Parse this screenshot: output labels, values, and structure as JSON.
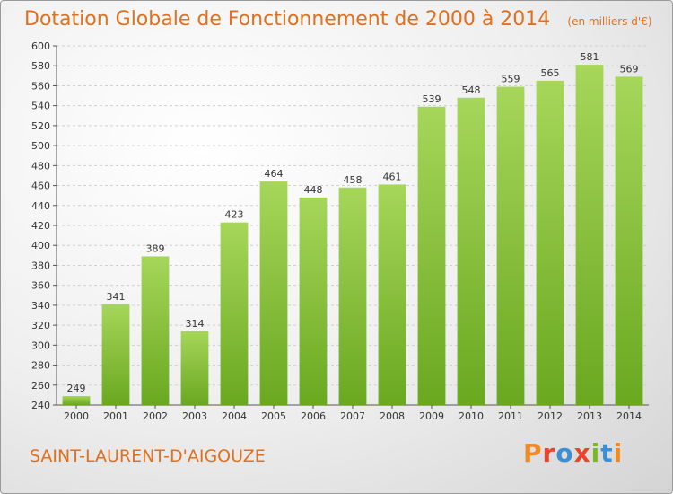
{
  "header": {
    "title": "Dotation Globale de Fonctionnement de 2000 à 2014",
    "subtitle": "(en milliers d'€)"
  },
  "footer": {
    "commune": "SAINT-LAURENT-D'AIGOUZE",
    "logo_text": "Proxiti",
    "logo_colors": [
      "#f08a24",
      "#e8452c",
      "#3a8fd6",
      "#e8452c",
      "#79b829",
      "#3a8fd6",
      "#f08a24"
    ]
  },
  "chart_data": {
    "type": "bar",
    "title": "Dotation Globale de Fonctionnement de 2000 à 2014",
    "subtitle": "(en milliers d'€)",
    "categories": [
      "2000",
      "2001",
      "2002",
      "2003",
      "2004",
      "2005",
      "2006",
      "2007",
      "2008",
      "2009",
      "2010",
      "2011",
      "2012",
      "2013",
      "2014"
    ],
    "values": [
      249,
      341,
      389,
      314,
      423,
      464,
      448,
      458,
      461,
      539,
      548,
      559,
      565,
      581,
      569
    ],
    "ylim": [
      240,
      600
    ],
    "ytick_step": 20,
    "grid": true,
    "bar_color_top": "#a6d65a",
    "bar_color_bottom": "#6aa820",
    "grid_color": "#cfcfcf"
  }
}
